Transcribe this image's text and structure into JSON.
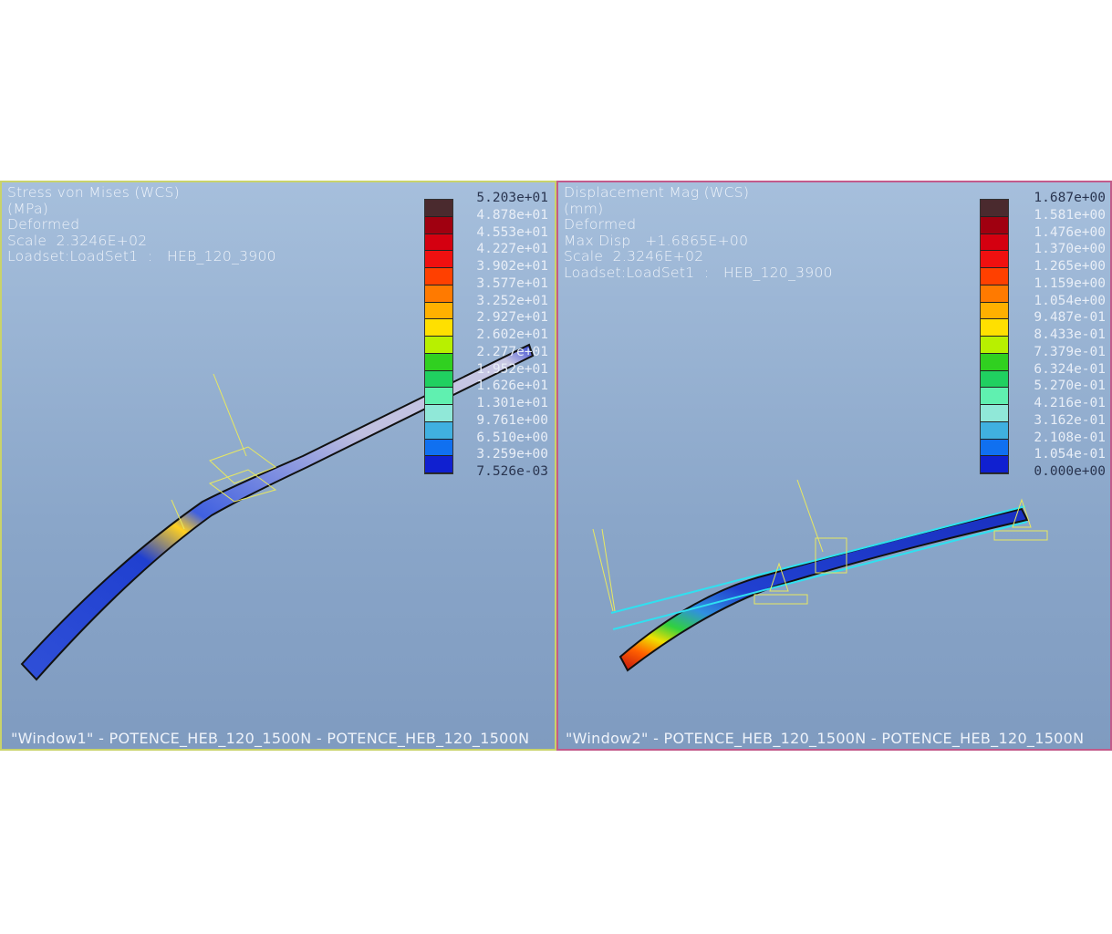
{
  "window1": {
    "info": [
      "Stress von Mises (WCS)",
      "(MPa)",
      "Deformed",
      "Scale  2.3246E+02",
      "Loadset:LoadSet1  :   HEB_120_3900"
    ],
    "legend": [
      "5.203e+01",
      "4.878e+01",
      "4.553e+01",
      "4.227e+01",
      "3.902e+01",
      "3.577e+01",
      "3.252e+01",
      "2.927e+01",
      "2.602e+01",
      "2.277e+01",
      "1.952e+01",
      "1.626e+01",
      "1.301e+01",
      "9.761e+00",
      "6.510e+00",
      "3.259e+00",
      "7.526e-03"
    ],
    "colors": [
      "#4a2a2e",
      "#a00010",
      "#d40010",
      "#f01010",
      "#ff4000",
      "#ff7a00",
      "#ffb000",
      "#ffe000",
      "#b8f000",
      "#30d020",
      "#20d060",
      "#60f0b0",
      "#90e8d8",
      "#40b0e0",
      "#1070f0",
      "#1020d0",
      "#c8c8e0"
    ],
    "footer": "\"Window1\" - POTENCE_HEB_120_1500N - POTENCE_HEB_120_1500N"
  },
  "window2": {
    "info": [
      "Displacement Mag (WCS)",
      "(mm)",
      "Deformed",
      "Max Disp   +1.6865E+00",
      "Scale  2.3246E+02",
      "Loadset:LoadSet1  :   HEB_120_3900"
    ],
    "legend": [
      "1.687e+00",
      "1.581e+00",
      "1.476e+00",
      "1.370e+00",
      "1.265e+00",
      "1.159e+00",
      "1.054e+00",
      "9.487e-01",
      "8.433e-01",
      "7.379e-01",
      "6.324e-01",
      "5.270e-01",
      "4.216e-01",
      "3.162e-01",
      "2.108e-01",
      "1.054e-01",
      "0.000e+00"
    ],
    "colors": [
      "#4a2a2e",
      "#a00010",
      "#d40010",
      "#f01010",
      "#ff4000",
      "#ff7a00",
      "#ffb000",
      "#ffe000",
      "#b8f000",
      "#30d020",
      "#20d060",
      "#60f0b0",
      "#90e8d8",
      "#40b0e0",
      "#1070f0",
      "#1020d0"
    ],
    "footer": "\"Window2\" - POTENCE_HEB_120_1500N - POTENCE_HEB_120_1500N"
  }
}
